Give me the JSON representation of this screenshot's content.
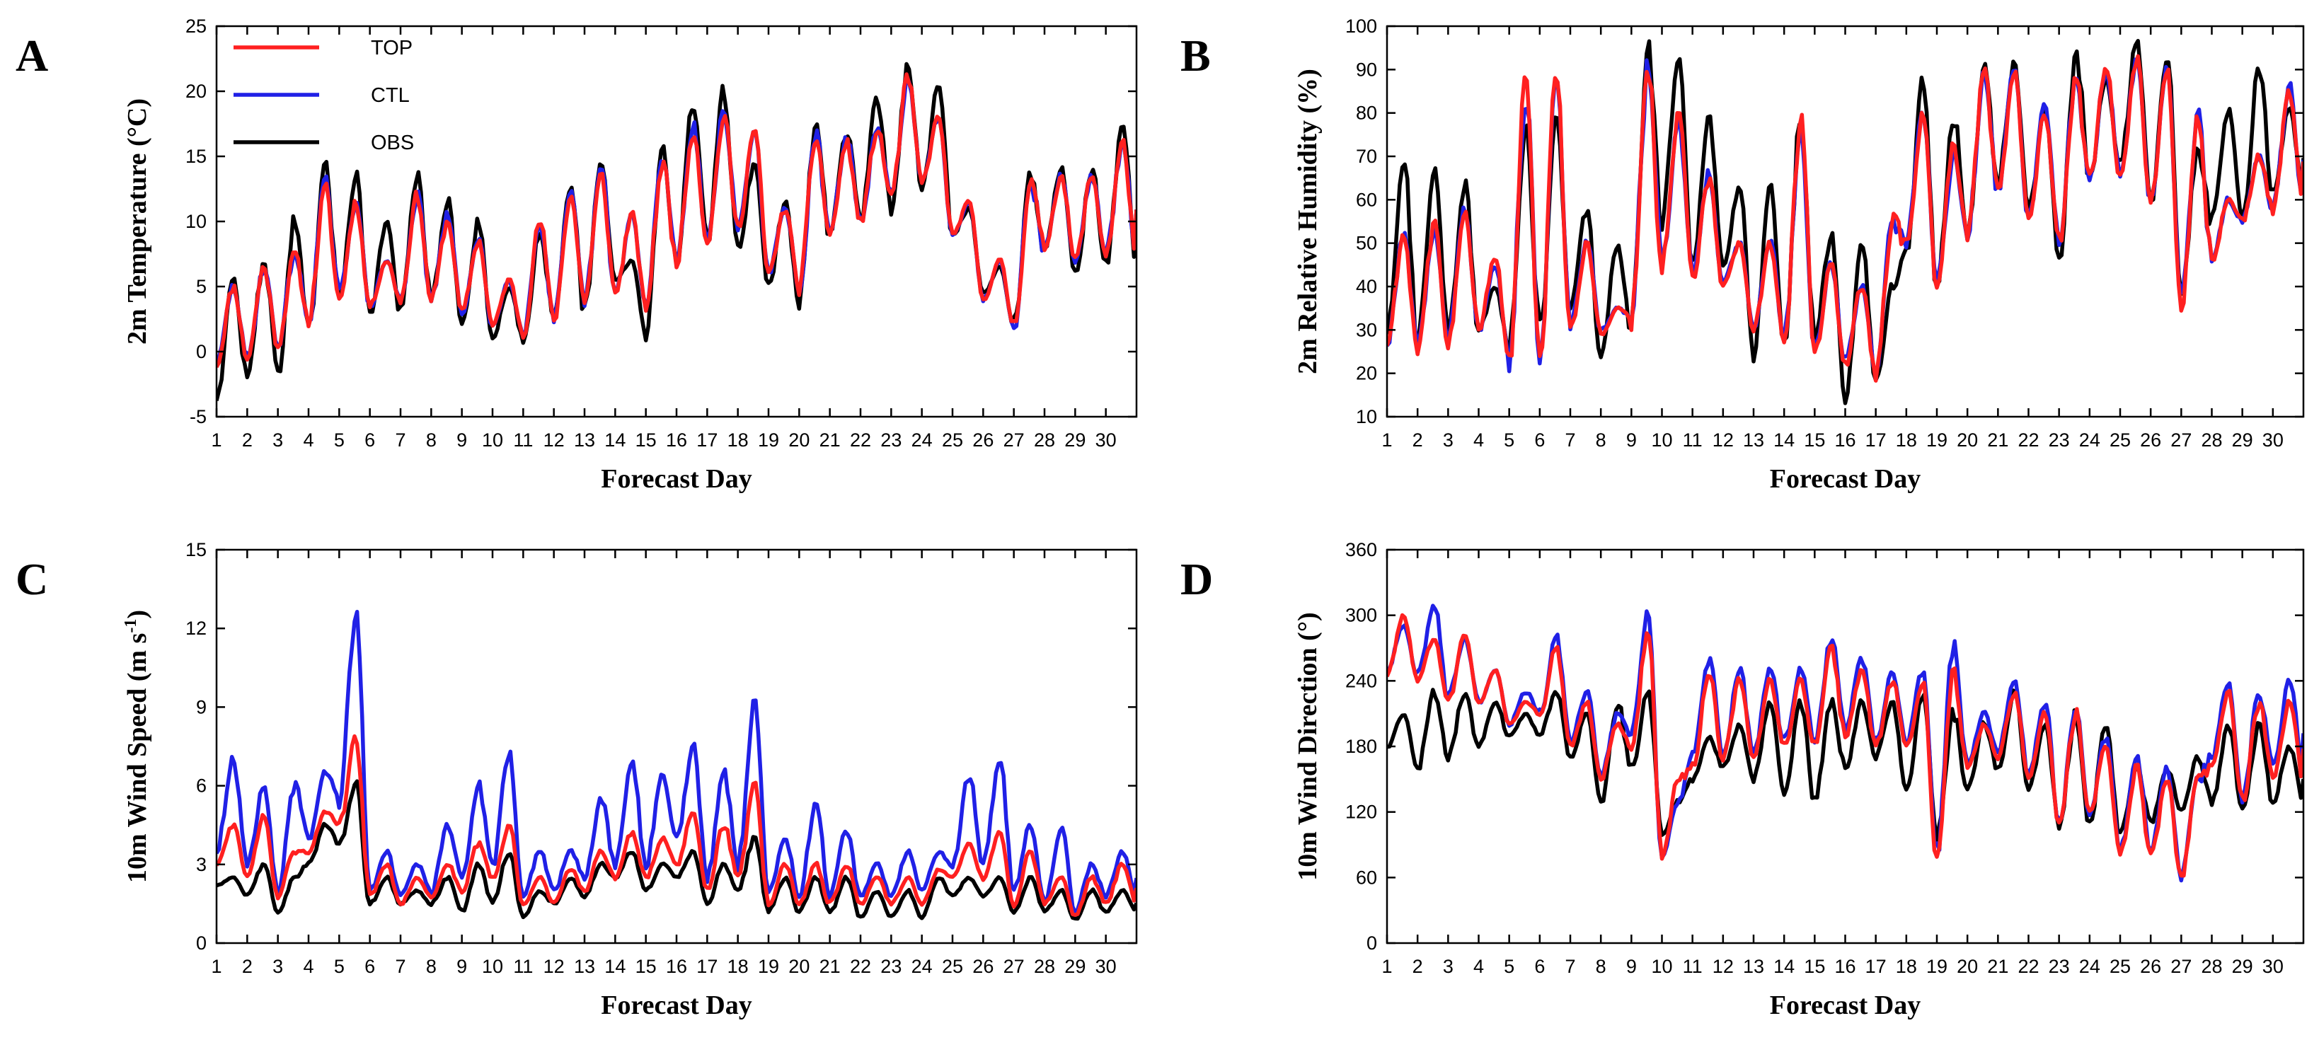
{
  "colors": {
    "TOP": "#ff2020",
    "CTL": "#2020e6",
    "OBS": "#000000"
  },
  "legend": [
    "TOP",
    "CTL",
    "OBS"
  ],
  "chart_data": [
    {
      "panel": "A",
      "type": "line",
      "xlabel": "Forecast Day",
      "ylabel": "2m Temperature (°C)",
      "xlim": [
        1,
        31
      ],
      "ylim": [
        -5,
        25
      ],
      "yticks": [
        -5,
        0,
        5,
        10,
        15,
        20,
        25
      ],
      "xticks": [
        1,
        2,
        3,
        4,
        5,
        6,
        7,
        8,
        9,
        10,
        11,
        12,
        13,
        14,
        15,
        16,
        17,
        18,
        19,
        20,
        21,
        22,
        23,
        24,
        25,
        26,
        27,
        28,
        29,
        30
      ],
      "x": [
        1,
        2,
        3,
        4,
        5,
        6,
        7,
        8,
        9,
        10,
        11,
        12,
        13,
        14,
        15,
        16,
        17,
        18,
        19,
        20,
        21,
        22,
        23,
        24,
        25,
        26,
        27,
        28,
        29,
        30
      ],
      "series": [
        {
          "name": "TOP",
          "min": [
            -1.0,
            -0.5,
            0.5,
            2.5,
            4.0,
            3.5,
            4.0,
            4.0,
            3.0,
            2.0,
            1.5,
            2.5,
            4.0,
            4.5,
            3.5,
            7.0,
            8.5,
            9.5,
            6.0,
            5.0,
            9.0,
            10.0,
            12.0,
            13.0,
            9.0,
            4.0,
            2.0,
            8.0,
            7.0,
            7.5
          ],
          "max": [
            5.0,
            6.5,
            7.5,
            12.5,
            11.5,
            7.0,
            12.0,
            10.0,
            8.5,
            5.5,
            10.0,
            12.0,
            13.5,
            10.5,
            14.5,
            17.0,
            18.0,
            17.0,
            11.0,
            16.5,
            16.0,
            17.0,
            21.0,
            18.0,
            11.5,
            7.0,
            13.0,
            13.5,
            13.5,
            16.0
          ]
        },
        {
          "name": "CTL",
          "min": [
            -1.0,
            -0.5,
            0.5,
            2.5,
            4.5,
            3.5,
            4.0,
            4.0,
            3.0,
            2.0,
            1.5,
            2.5,
            4.0,
            4.5,
            3.5,
            7.0,
            8.5,
            9.5,
            6.0,
            5.0,
            9.0,
            10.0,
            12.0,
            13.0,
            9.0,
            4.0,
            2.0,
            8.0,
            7.0,
            7.5
          ],
          "max": [
            5.0,
            6.5,
            7.5,
            13.0,
            11.5,
            7.0,
            12.0,
            10.5,
            8.5,
            5.5,
            10.0,
            12.0,
            14.0,
            10.5,
            15.0,
            17.5,
            18.5,
            17.0,
            11.0,
            16.5,
            16.5,
            17.0,
            21.0,
            18.0,
            11.5,
            7.0,
            13.0,
            13.5,
            13.5,
            16.0
          ]
        },
        {
          "name": "OBS",
          "min": [
            -3.5,
            -2.0,
            -1.5,
            1.5,
            4.5,
            3.0,
            3.0,
            4.0,
            2.0,
            1.0,
            1.0,
            3.0,
            3.0,
            5.5,
            1.5,
            7.0,
            8.5,
            8.0,
            5.0,
            4.0,
            9.0,
            10.0,
            11.0,
            12.5,
            9.0,
            4.5,
            2.0,
            8.0,
            6.0,
            6.5
          ],
          "max": [
            5.5,
            7.0,
            10.0,
            14.0,
            13.5,
            10.0,
            13.5,
            11.5,
            10.0,
            5.0,
            9.0,
            13.0,
            14.5,
            7.0,
            15.5,
            19.0,
            20.0,
            14.5,
            11.5,
            17.5,
            17.0,
            19.5,
            22.0,
            20.5,
            11.0,
            6.5,
            14.0,
            14.0,
            14.0,
            17.5
          ]
        }
      ]
    },
    {
      "panel": "B",
      "type": "line",
      "xlabel": "Forecast Day",
      "ylabel": "2m Relative Humidity (%)",
      "xlim": [
        1,
        31
      ],
      "ylim": [
        10,
        100
      ],
      "yticks": [
        10,
        20,
        30,
        40,
        50,
        60,
        70,
        80,
        90,
        100
      ],
      "xticks": [
        1,
        2,
        3,
        4,
        5,
        6,
        7,
        8,
        9,
        10,
        11,
        12,
        13,
        14,
        15,
        16,
        17,
        18,
        19,
        20,
        21,
        22,
        23,
        24,
        25,
        26,
        27,
        28,
        29,
        30
      ],
      "x": [
        1,
        2,
        3,
        4,
        5,
        6,
        7,
        8,
        9,
        10,
        11,
        12,
        13,
        14,
        15,
        16,
        17,
        18,
        19,
        20,
        21,
        22,
        23,
        24,
        25,
        26,
        27,
        28,
        29,
        30
      ],
      "series": [
        {
          "name": "TOP",
          "min": [
            27,
            26,
            27,
            30,
            23,
            23,
            30,
            29,
            33,
            45,
            42,
            40,
            30,
            28,
            25,
            22,
            20,
            50,
            40,
            52,
            62,
            55,
            50,
            65,
            65,
            60,
            35,
            46,
            55,
            58
          ],
          "max": [
            52,
            54,
            58,
            47,
            87,
            88,
            50,
            35,
            90,
            80,
            65,
            50,
            50,
            78,
            45,
            40,
            55,
            80,
            72,
            90,
            90,
            80,
            88,
            90,
            92,
            90,
            80,
            60,
            70,
            85
          ]
        },
        {
          "name": "CTL",
          "min": [
            27,
            27,
            28,
            30,
            24,
            24,
            31,
            30,
            33,
            46,
            43,
            41,
            31,
            29,
            26,
            23,
            21,
            50,
            41,
            52,
            62,
            56,
            51,
            65,
            66,
            60,
            36,
            46,
            55,
            58
          ],
          "max": [
            52,
            53,
            58,
            45,
            85,
            87,
            50,
            35,
            90,
            78,
            66,
            50,
            50,
            76,
            45,
            40,
            55,
            80,
            70,
            90,
            90,
            82,
            88,
            90,
            92,
            90,
            80,
            60,
            70,
            86
          ]
        },
        {
          "name": "OBS",
          "min": [
            30,
            28,
            30,
            30,
            26,
            30,
            35,
            23,
            30,
            55,
            45,
            45,
            25,
            28,
            28,
            15,
            18,
            48,
            40,
            52,
            65,
            58,
            47,
            65,
            68,
            60,
            38,
            55,
            55,
            62
          ],
          "max": [
            70,
            66,
            63,
            40,
            78,
            78,
            58,
            50,
            96,
            94,
            78,
            63,
            63,
            79,
            52,
            50,
            40,
            88,
            79,
            90,
            91,
            80,
            94,
            88,
            97,
            93,
            72,
            80,
            90,
            81
          ]
        }
      ]
    },
    {
      "panel": "C",
      "type": "line",
      "xlabel": "Forecast Day",
      "ylabel": "10m Wind Speed (m s-1)",
      "xlim": [
        1,
        31
      ],
      "ylim": [
        0,
        15
      ],
      "yticks": [
        0,
        3,
        6,
        9,
        12,
        15
      ],
      "xticks": [
        1,
        2,
        3,
        4,
        5,
        6,
        7,
        8,
        9,
        10,
        11,
        12,
        13,
        14,
        15,
        16,
        17,
        18,
        19,
        20,
        21,
        22,
        23,
        24,
        25,
        26,
        27,
        28,
        29,
        30
      ],
      "x": [
        1,
        2,
        3,
        4,
        5,
        6,
        7,
        8,
        9,
        10,
        11,
        12,
        13,
        14,
        15,
        16,
        17,
        18,
        19,
        20,
        21,
        22,
        23,
        24,
        25,
        26,
        27,
        28,
        29,
        30
      ],
      "series": [
        {
          "name": "TOP",
          "min": [
            3.0,
            2.5,
            1.8,
            3.5,
            4.5,
            1.8,
            1.5,
            1.8,
            2.0,
            2.5,
            1.5,
            1.5,
            2.0,
            2.5,
            2.5,
            3.0,
            2.0,
            2.5,
            1.5,
            1.5,
            1.5,
            1.5,
            1.5,
            1.5,
            2.5,
            2.5,
            1.5,
            1.5,
            1.0,
            1.5
          ],
          "max": [
            4.5,
            4.8,
            3.5,
            5.0,
            7.8,
            3.0,
            2.5,
            3.0,
            3.8,
            4.5,
            2.5,
            2.8,
            3.5,
            4.2,
            4.0,
            5.0,
            4.5,
            6.0,
            3.0,
            3.0,
            3.0,
            2.5,
            2.5,
            2.8,
            3.8,
            4.2,
            3.5,
            2.5,
            2.5,
            3.0
          ]
        },
        {
          "name": "CTL",
          "min": [
            3.5,
            3.0,
            2.0,
            4.0,
            5.5,
            2.0,
            1.8,
            2.0,
            2.5,
            3.0,
            1.8,
            2.0,
            2.5,
            3.0,
            3.0,
            4.0,
            2.5,
            3.0,
            2.0,
            1.8,
            1.8,
            1.8,
            1.8,
            2.0,
            3.0,
            3.0,
            2.0,
            1.5,
            1.2,
            1.8
          ],
          "max": [
            7.0,
            6.0,
            6.0,
            6.5,
            12.7,
            3.5,
            3.0,
            4.5,
            6.0,
            7.2,
            3.5,
            3.5,
            5.5,
            7.0,
            6.5,
            7.5,
            6.5,
            9.1,
            4.0,
            5.3,
            4.3,
            3.0,
            3.5,
            3.5,
            6.4,
            7.0,
            4.5,
            4.5,
            3.0,
            3.5
          ]
        },
        {
          "name": "OBS",
          "min": [
            2.2,
            1.8,
            1.2,
            3.0,
            3.8,
            1.5,
            1.5,
            1.5,
            1.2,
            1.5,
            1.0,
            1.5,
            1.8,
            2.5,
            2.0,
            2.5,
            1.5,
            2.0,
            1.2,
            1.2,
            1.2,
            1.0,
            1.0,
            1.0,
            1.8,
            1.8,
            1.2,
            1.2,
            0.9,
            1.2
          ],
          "max": [
            2.5,
            3.0,
            2.5,
            4.5,
            6.1,
            2.5,
            2.0,
            2.5,
            3.0,
            3.5,
            2.0,
            2.5,
            3.0,
            3.5,
            3.0,
            3.5,
            3.0,
            4.0,
            2.5,
            2.5,
            2.5,
            2.0,
            2.0,
            2.5,
            2.5,
            2.5,
            2.5,
            2.0,
            2.0,
            2.0
          ]
        }
      ]
    },
    {
      "panel": "D",
      "type": "line",
      "xlabel": "Forecast Day",
      "ylabel": "10m Wind Direction (°)",
      "xlim": [
        1,
        31
      ],
      "ylim": [
        0,
        360
      ],
      "yticks": [
        0,
        60,
        120,
        180,
        240,
        300,
        360
      ],
      "xticks": [
        1,
        2,
        3,
        4,
        5,
        6,
        7,
        8,
        9,
        10,
        11,
        12,
        13,
        14,
        15,
        16,
        17,
        18,
        19,
        20,
        21,
        22,
        23,
        24,
        25,
        26,
        27,
        28,
        29,
        30
      ],
      "x": [
        1,
        2,
        3,
        4,
        5,
        6,
        7,
        8,
        9,
        10,
        11,
        12,
        13,
        14,
        15,
        16,
        17,
        18,
        19,
        20,
        21,
        22,
        23,
        24,
        25,
        26,
        27,
        28,
        29,
        30
      ],
      "series": [
        {
          "name": "TOP",
          "min": [
            245,
            240,
            220,
            220,
            200,
            210,
            180,
            150,
            180,
            80,
            160,
            170,
            170,
            180,
            180,
            190,
            180,
            180,
            70,
            160,
            170,
            150,
            110,
            120,
            80,
            80,
            60,
            160,
            130,
            150
          ],
          "max": [
            300,
            280,
            280,
            250,
            220,
            270,
            220,
            200,
            285,
            150,
            250,
            240,
            240,
            240,
            270,
            250,
            240,
            240,
            250,
            200,
            230,
            210,
            210,
            180,
            160,
            150,
            150,
            230,
            220,
            220
          ]
        },
        {
          "name": "CTL",
          "min": [
            250,
            245,
            225,
            220,
            200,
            210,
            185,
            155,
            190,
            80,
            170,
            175,
            175,
            185,
            185,
            195,
            185,
            185,
            80,
            165,
            175,
            155,
            110,
            120,
            85,
            85,
            60,
            170,
            130,
            160
          ],
          "max": [
            290,
            310,
            280,
            250,
            230,
            280,
            230,
            210,
            300,
            130,
            260,
            250,
            250,
            250,
            280,
            260,
            250,
            250,
            270,
            210,
            240,
            220,
            220,
            190,
            170,
            160,
            150,
            240,
            230,
            240
          ]
        },
        {
          "name": "OBS",
          "min": [
            180,
            160,
            170,
            180,
            190,
            190,
            170,
            130,
            160,
            100,
            150,
            160,
            150,
            140,
            130,
            160,
            170,
            140,
            100,
            140,
            160,
            140,
            110,
            110,
            100,
            110,
            120,
            130,
            120,
            130
          ],
          "max": [
            210,
            230,
            230,
            220,
            210,
            230,
            210,
            220,
            230,
            130,
            190,
            200,
            220,
            220,
            220,
            220,
            220,
            230,
            210,
            200,
            230,
            200,
            210,
            200,
            160,
            160,
            170,
            200,
            200,
            180
          ]
        }
      ]
    }
  ]
}
